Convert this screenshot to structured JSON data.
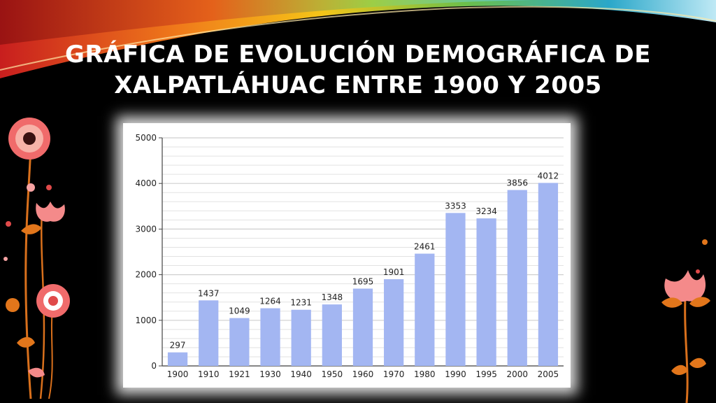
{
  "slide": {
    "title_line1": "GRÁFICA DE EVOLUCIÓN DEMOGRÁFICA DE",
    "title_line2": "XALPATLÁHUAC ENTRE 1900 Y 2005"
  },
  "colors": {
    "background": "#000000",
    "title": "#ffffff",
    "bar": "#a3b6f2",
    "grid": "#cfcfcf",
    "axis": "#444444"
  },
  "chart_data": {
    "type": "bar",
    "categories": [
      "1900",
      "1910",
      "1921",
      "1930",
      "1940",
      "1950",
      "1960",
      "1970",
      "1980",
      "1990",
      "1995",
      "2000",
      "2005"
    ],
    "values": [
      297,
      1437,
      1049,
      1264,
      1231,
      1348,
      1695,
      1901,
      2461,
      3353,
      3234,
      3856,
      4012
    ],
    "yticks": [
      0,
      1000,
      2000,
      3000,
      4000,
      5000
    ],
    "ylim": [
      0,
      5000
    ],
    "grid": true,
    "legend": "none",
    "data_labels": true
  }
}
